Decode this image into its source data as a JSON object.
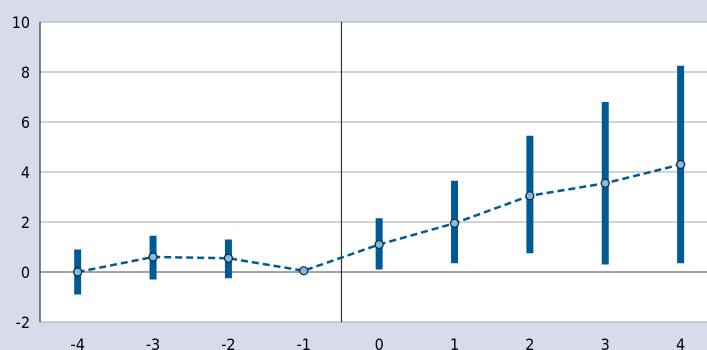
{
  "chart_data": {
    "type": "line",
    "title": "",
    "xlabel": "",
    "ylabel": "",
    "x": [
      -4,
      -3,
      -2,
      -1,
      0,
      1,
      2,
      3,
      4
    ],
    "xlim": [
      -4.5,
      4.35
    ],
    "ylim": [
      -2,
      10
    ],
    "yticks": [
      -2,
      0,
      2,
      4,
      6,
      8,
      10
    ],
    "grid": true,
    "reference_line_x": -0.5,
    "series": [
      {
        "values": [
          0.0,
          0.6,
          0.55,
          0.05,
          1.1,
          1.95,
          3.05,
          3.55,
          4.3
        ],
        "lower": [
          -0.9,
          -0.3,
          -0.25,
          null,
          0.1,
          0.35,
          0.75,
          0.3,
          0.35
        ],
        "upper": [
          0.9,
          1.45,
          1.3,
          null,
          2.15,
          3.65,
          5.45,
          6.8,
          8.25
        ],
        "color": "#005a96",
        "style": "dashed"
      }
    ]
  },
  "page": {
    "background": "#d7dbeb",
    "bar_color": "#005a96",
    "grid_color": "#a9a9a9"
  }
}
